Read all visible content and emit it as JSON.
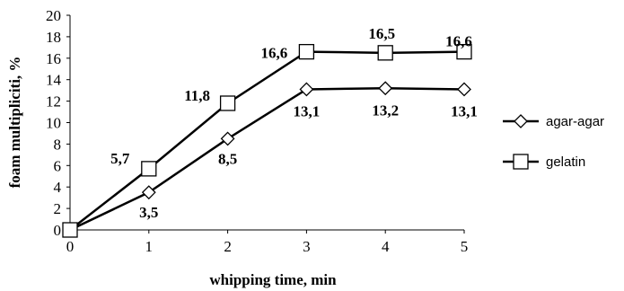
{
  "chart_data": {
    "type": "line",
    "title": "",
    "xlabel": "whipping time, min",
    "ylabel": "foam multipliciti, %",
    "x": [
      0,
      1,
      2,
      3,
      4,
      5
    ],
    "xlim": [
      0,
      5
    ],
    "ylim": [
      0,
      20
    ],
    "yticks": [
      0,
      2,
      4,
      6,
      8,
      10,
      12,
      14,
      16,
      18,
      20
    ],
    "xticks": [
      0,
      1,
      2,
      3,
      4,
      5
    ],
    "grid": false,
    "legend_position": "right",
    "series": [
      {
        "name": "agar-agar",
        "marker": "diamond",
        "values": [
          0,
          3.5,
          8.5,
          13.1,
          13.2,
          13.1
        ],
        "labels": [
          "",
          "3,5",
          "8,5",
          "13,1",
          "13,2",
          "13,1"
        ]
      },
      {
        "name": "gelatin",
        "marker": "square",
        "values": [
          0,
          5.7,
          11.8,
          16.6,
          16.5,
          16.6
        ],
        "labels": [
          "",
          "5,7",
          "11,8",
          "16,6",
          "16,5",
          "16,6"
        ]
      }
    ],
    "colors": {
      "line": "#000000",
      "marker_fill": "#ffffff"
    }
  }
}
